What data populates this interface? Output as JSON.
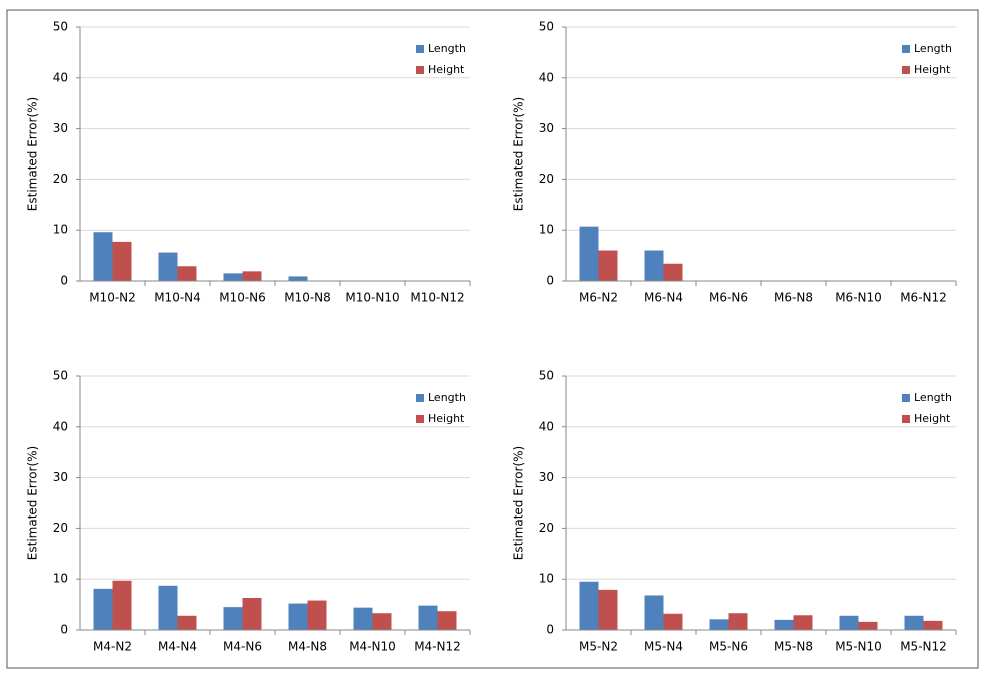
{
  "chart_data": [
    {
      "type": "bar",
      "ylabel": "Estimated Error(%)",
      "categories": [
        "M10-N2",
        "M10-N4",
        "M10-N6",
        "M10-N8",
        "M10-N10",
        "M10-N12"
      ],
      "series": [
        {
          "name": "Length",
          "color": "#4f81bd",
          "values": [
            9.6,
            5.6,
            1.5,
            0.9,
            0,
            0
          ]
        },
        {
          "name": "Height",
          "color": "#c0504d",
          "values": [
            7.7,
            2.9,
            1.9,
            0,
            0,
            0
          ]
        }
      ],
      "ylim": [
        0,
        50
      ],
      "yticks": [
        0,
        10,
        20,
        30,
        40,
        50
      ],
      "grid": true,
      "legend": "upper right"
    },
    {
      "type": "bar",
      "ylabel": "Estimated Error(%)",
      "categories": [
        "M6-N2",
        "M6-N4",
        "M6-N6",
        "M6-N8",
        "M6-N10",
        "M6-N12"
      ],
      "series": [
        {
          "name": "Length",
          "color": "#4f81bd",
          "values": [
            10.7,
            6.0,
            0,
            0,
            0,
            0
          ]
        },
        {
          "name": "Height",
          "color": "#c0504d",
          "values": [
            6.0,
            3.4,
            0,
            0,
            0,
            0
          ]
        }
      ],
      "ylim": [
        0,
        50
      ],
      "yticks": [
        0,
        10,
        20,
        30,
        40,
        50
      ],
      "grid": true,
      "legend": "upper right"
    },
    {
      "type": "bar",
      "ylabel": "Estimated Error(%)",
      "categories": [
        "M4-N2",
        "M4-N4",
        "M4-N6",
        "M4-N8",
        "M4-N10",
        "M4-N12"
      ],
      "series": [
        {
          "name": "Length",
          "color": "#4f81bd",
          "values": [
            8.1,
            8.7,
            4.5,
            5.2,
            4.4,
            4.8
          ]
        },
        {
          "name": "Height",
          "color": "#c0504d",
          "values": [
            9.7,
            2.8,
            6.3,
            5.8,
            3.3,
            3.7
          ]
        }
      ],
      "ylim": [
        0,
        50
      ],
      "yticks": [
        0,
        10,
        20,
        30,
        40,
        50
      ],
      "grid": true,
      "legend": "upper right"
    },
    {
      "type": "bar",
      "ylabel": "Estimated Error(%)",
      "categories": [
        "M5-N2",
        "M5-N4",
        "M5-N6",
        "M5-N8",
        "M5-N10",
        "M5-N12"
      ],
      "series": [
        {
          "name": "Length",
          "color": "#4f81bd",
          "values": [
            9.5,
            6.8,
            2.1,
            2.0,
            2.8,
            2.8
          ]
        },
        {
          "name": "Height",
          "color": "#c0504d",
          "values": [
            7.9,
            3.2,
            3.3,
            2.9,
            1.6,
            1.8
          ]
        }
      ],
      "ylim": [
        0,
        50
      ],
      "yticks": [
        0,
        10,
        20,
        30,
        40,
        50
      ],
      "grid": true,
      "legend": "upper right"
    }
  ]
}
